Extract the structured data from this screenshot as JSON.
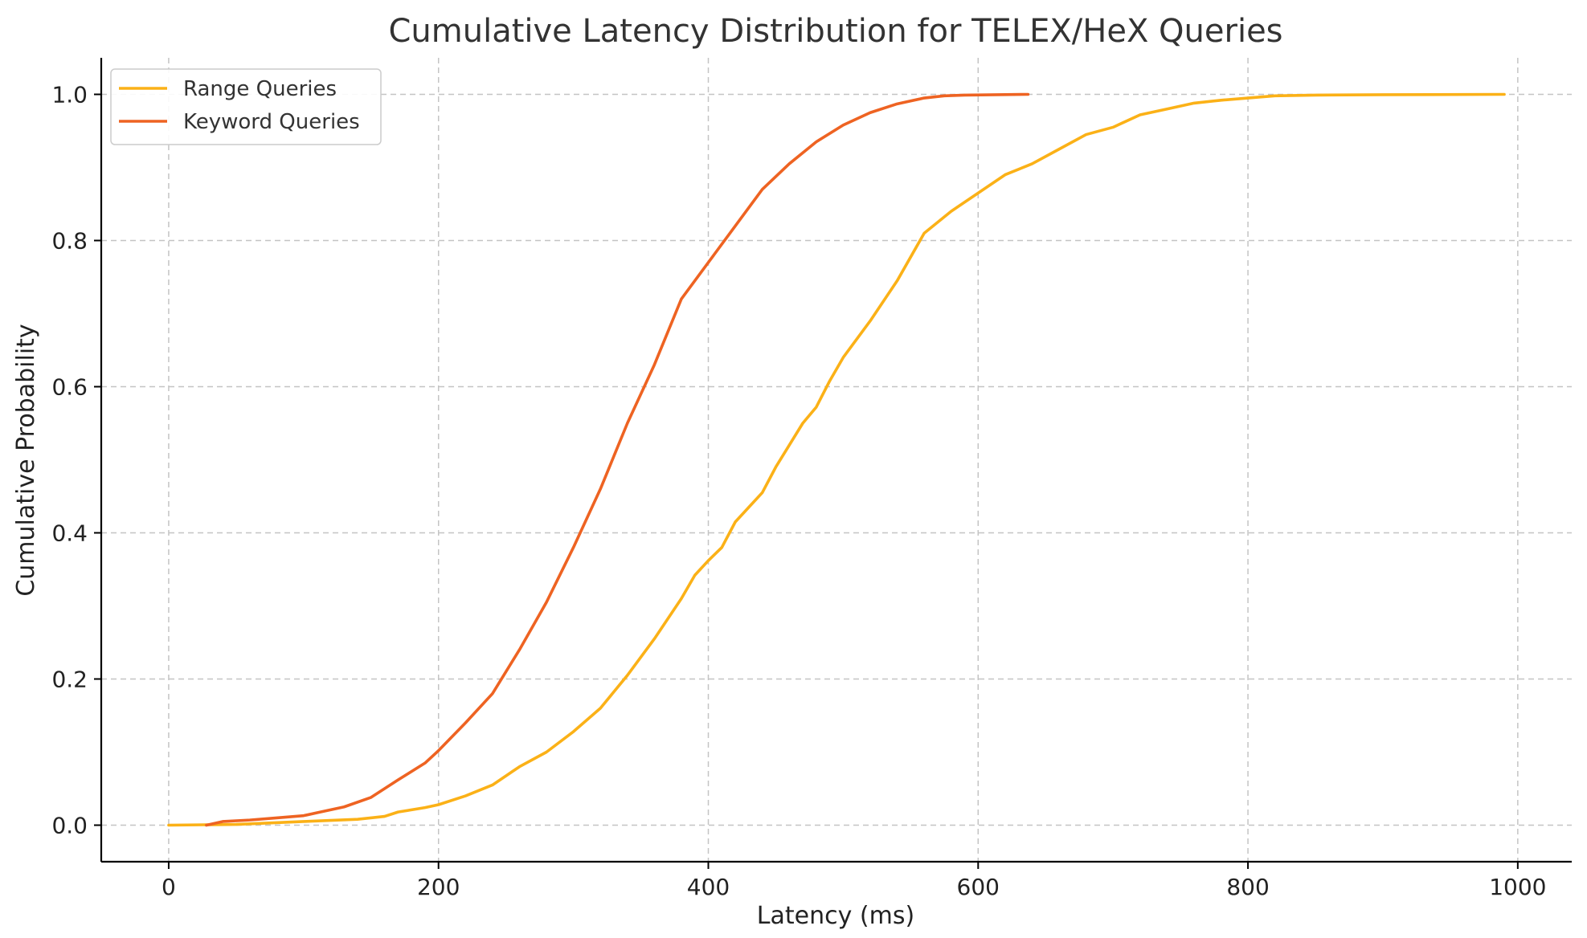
{
  "chart_data": {
    "type": "line",
    "title": "Cumulative Latency Distribution for TELEX/HeX Queries",
    "xlabel": "Latency (ms)",
    "ylabel": "Cumulative Probability",
    "xlim": [
      -50,
      1040
    ],
    "ylim": [
      -0.05,
      1.05
    ],
    "xticks": [
      0,
      200,
      400,
      600,
      800,
      1000
    ],
    "xtick_labels": [
      "0",
      "200",
      "400",
      "600",
      "800",
      "1000"
    ],
    "yticks": [
      0.0,
      0.2,
      0.4,
      0.6,
      0.8,
      1.0
    ],
    "ytick_labels": [
      "0.0",
      "0.2",
      "0.4",
      "0.6",
      "0.8",
      "1.0"
    ],
    "grid": true,
    "legend_position": "top-left",
    "series": [
      {
        "name": "Range Queries",
        "color": "#fbb117",
        "x": [
          0,
          50,
          100,
          140,
          160,
          170,
          190,
          200,
          220,
          240,
          260,
          280,
          300,
          320,
          340,
          360,
          380,
          390,
          400,
          410,
          420,
          430,
          440,
          450,
          460,
          470,
          480,
          490,
          500,
          520,
          540,
          560,
          580,
          600,
          620,
          640,
          660,
          680,
          700,
          720,
          740,
          760,
          780,
          800,
          820,
          850,
          900,
          990
        ],
        "y": [
          0.0,
          0.001,
          0.005,
          0.008,
          0.012,
          0.018,
          0.024,
          0.028,
          0.04,
          0.055,
          0.08,
          0.1,
          0.128,
          0.16,
          0.205,
          0.255,
          0.31,
          0.342,
          0.362,
          0.38,
          0.415,
          0.435,
          0.455,
          0.49,
          0.52,
          0.55,
          0.572,
          0.608,
          0.64,
          0.69,
          0.745,
          0.81,
          0.84,
          0.865,
          0.89,
          0.905,
          0.925,
          0.945,
          0.955,
          0.972,
          0.98,
          0.988,
          0.992,
          0.995,
          0.998,
          0.999,
          0.9995,
          1.0
        ]
      },
      {
        "name": "Keyword Queries",
        "color": "#ee6322",
        "x": [
          28,
          40,
          60,
          80,
          100,
          110,
          130,
          150,
          160,
          170,
          190,
          200,
          220,
          240,
          260,
          280,
          300,
          320,
          340,
          360,
          380,
          400,
          420,
          440,
          460,
          480,
          500,
          520,
          540,
          560,
          575,
          590,
          637
        ],
        "y": [
          0.0,
          0.005,
          0.007,
          0.01,
          0.013,
          0.017,
          0.025,
          0.038,
          0.05,
          0.062,
          0.085,
          0.102,
          0.14,
          0.18,
          0.24,
          0.305,
          0.38,
          0.46,
          0.55,
          0.63,
          0.72,
          0.77,
          0.82,
          0.87,
          0.905,
          0.935,
          0.958,
          0.975,
          0.987,
          0.995,
          0.998,
          0.999,
          1.0
        ]
      }
    ]
  }
}
